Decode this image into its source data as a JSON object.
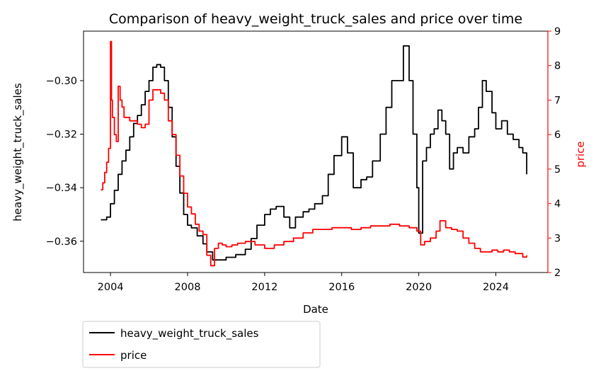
{
  "chart_data": {
    "type": "line",
    "title": "Comparison of heavy_weight_truck_sales and price over time",
    "xlabel": "Date",
    "ylabel_left": "heavy_weight_truck_sales",
    "ylabel_right": "price",
    "x_range": [
      2002.6,
      2026.7
    ],
    "x_ticks": [
      2004,
      2008,
      2012,
      2016,
      2020,
      2024
    ],
    "y_left_range": [
      -0.3717,
      -0.2815
    ],
    "y_left_ticks": [
      -0.36,
      -0.34,
      -0.32,
      -0.3
    ],
    "y_left_tick_labels": [
      "−0.36",
      "−0.34",
      "−0.32",
      "−0.30"
    ],
    "y_right_range": [
      2.0,
      9.0
    ],
    "y_right_ticks": [
      2,
      3,
      4,
      5,
      6,
      7,
      8,
      9
    ],
    "legend_position": "below-left",
    "grid": false,
    "series": [
      {
        "name": "heavy_weight_truck_sales",
        "axis": "left",
        "color": "#000000",
        "x": [
          2003.5,
          2003.8,
          2004.0,
          2004.2,
          2004.4,
          2004.6,
          2004.8,
          2005.0,
          2005.2,
          2005.4,
          2005.6,
          2005.8,
          2006.0,
          2006.2,
          2006.4,
          2006.6,
          2006.8,
          2007.0,
          2007.2,
          2007.4,
          2007.6,
          2007.8,
          2008.0,
          2008.2,
          2008.5,
          2008.8,
          2009.0,
          2009.3,
          2009.6,
          2010.0,
          2010.5,
          2011.0,
          2011.3,
          2011.6,
          2012.0,
          2012.3,
          2012.6,
          2013.0,
          2013.3,
          2013.6,
          2014.0,
          2014.3,
          2014.6,
          2015.0,
          2015.3,
          2015.6,
          2016.0,
          2016.3,
          2016.6,
          2017.0,
          2017.3,
          2017.6,
          2018.0,
          2018.3,
          2018.6,
          2019.0,
          2019.2,
          2019.5,
          2019.7,
          2019.9,
          2020.0,
          2020.2,
          2020.4,
          2020.6,
          2020.8,
          2021.0,
          2021.2,
          2021.4,
          2021.6,
          2021.8,
          2022.0,
          2022.3,
          2022.6,
          2022.9,
          2023.1,
          2023.3,
          2023.5,
          2023.8,
          2024.0,
          2024.3,
          2024.6,
          2024.9,
          2025.2,
          2025.4,
          2025.6
        ],
        "values": [
          -0.352,
          -0.351,
          -0.346,
          -0.341,
          -0.335,
          -0.33,
          -0.326,
          -0.321,
          -0.316,
          -0.313,
          -0.309,
          -0.304,
          -0.3,
          -0.295,
          -0.294,
          -0.295,
          -0.3,
          -0.31,
          -0.321,
          -0.332,
          -0.342,
          -0.35,
          -0.354,
          -0.355,
          -0.358,
          -0.361,
          -0.364,
          -0.367,
          -0.367,
          -0.366,
          -0.365,
          -0.363,
          -0.359,
          -0.354,
          -0.35,
          -0.348,
          -0.347,
          -0.351,
          -0.355,
          -0.351,
          -0.349,
          -0.348,
          -0.346,
          -0.343,
          -0.335,
          -0.328,
          -0.321,
          -0.327,
          -0.34,
          -0.337,
          -0.336,
          -0.33,
          -0.32,
          -0.31,
          -0.3,
          -0.3,
          -0.287,
          -0.3,
          -0.32,
          -0.34,
          -0.357,
          -0.33,
          -0.325,
          -0.32,
          -0.318,
          -0.311,
          -0.315,
          -0.32,
          -0.333,
          -0.327,
          -0.325,
          -0.327,
          -0.321,
          -0.318,
          -0.31,
          -0.3,
          -0.304,
          -0.312,
          -0.318,
          -0.315,
          -0.32,
          -0.322,
          -0.325,
          -0.327,
          -0.335
        ]
      },
      {
        "name": "price",
        "axis": "right",
        "color": "#ff0000",
        "x": [
          2003.5,
          2003.6,
          2003.7,
          2003.8,
          2003.9,
          2004.0,
          2004.05,
          2004.1,
          2004.2,
          2004.3,
          2004.4,
          2004.5,
          2004.6,
          2004.7,
          2004.8,
          2005.0,
          2005.2,
          2005.4,
          2005.6,
          2005.8,
          2006.0,
          2006.2,
          2006.4,
          2006.6,
          2006.8,
          2007.0,
          2007.2,
          2007.4,
          2007.6,
          2007.8,
          2008.0,
          2008.2,
          2008.4,
          2008.6,
          2008.8,
          2009.0,
          2009.2,
          2009.4,
          2009.6,
          2009.8,
          2010.0,
          2010.3,
          2010.6,
          2011.0,
          2011.5,
          2012.0,
          2012.5,
          2013.0,
          2013.5,
          2014.0,
          2014.5,
          2015.0,
          2015.5,
          2016.0,
          2016.5,
          2017.0,
          2017.5,
          2018.0,
          2018.5,
          2019.0,
          2019.5,
          2019.9,
          2020.1,
          2020.3,
          2020.6,
          2020.9,
          2021.1,
          2021.4,
          2021.7,
          2022.0,
          2022.3,
          2022.6,
          2022.9,
          2023.2,
          2023.5,
          2023.8,
          2024.1,
          2024.4,
          2024.7,
          2025.0,
          2025.2,
          2025.4,
          2025.6
        ],
        "values": [
          4.4,
          4.6,
          4.9,
          5.2,
          5.6,
          8.7,
          7.0,
          6.5,
          6.0,
          5.8,
          7.4,
          7.0,
          6.8,
          6.5,
          6.5,
          6.4,
          6.4,
          6.3,
          6.2,
          6.3,
          7.0,
          7.3,
          7.3,
          7.2,
          7.0,
          6.4,
          6.0,
          5.4,
          4.8,
          4.3,
          3.9,
          3.7,
          3.4,
          3.2,
          3.1,
          2.5,
          2.2,
          2.7,
          2.85,
          2.8,
          2.75,
          2.8,
          2.85,
          2.9,
          2.8,
          2.7,
          2.8,
          2.9,
          3.0,
          3.15,
          3.25,
          3.25,
          3.3,
          3.3,
          3.25,
          3.3,
          3.35,
          3.35,
          3.4,
          3.35,
          3.3,
          3.2,
          2.8,
          2.9,
          3.0,
          3.2,
          3.5,
          3.3,
          3.25,
          3.2,
          3.0,
          2.85,
          2.7,
          2.6,
          2.6,
          2.65,
          2.6,
          2.65,
          2.6,
          2.55,
          2.55,
          2.45,
          2.5
        ]
      }
    ]
  }
}
